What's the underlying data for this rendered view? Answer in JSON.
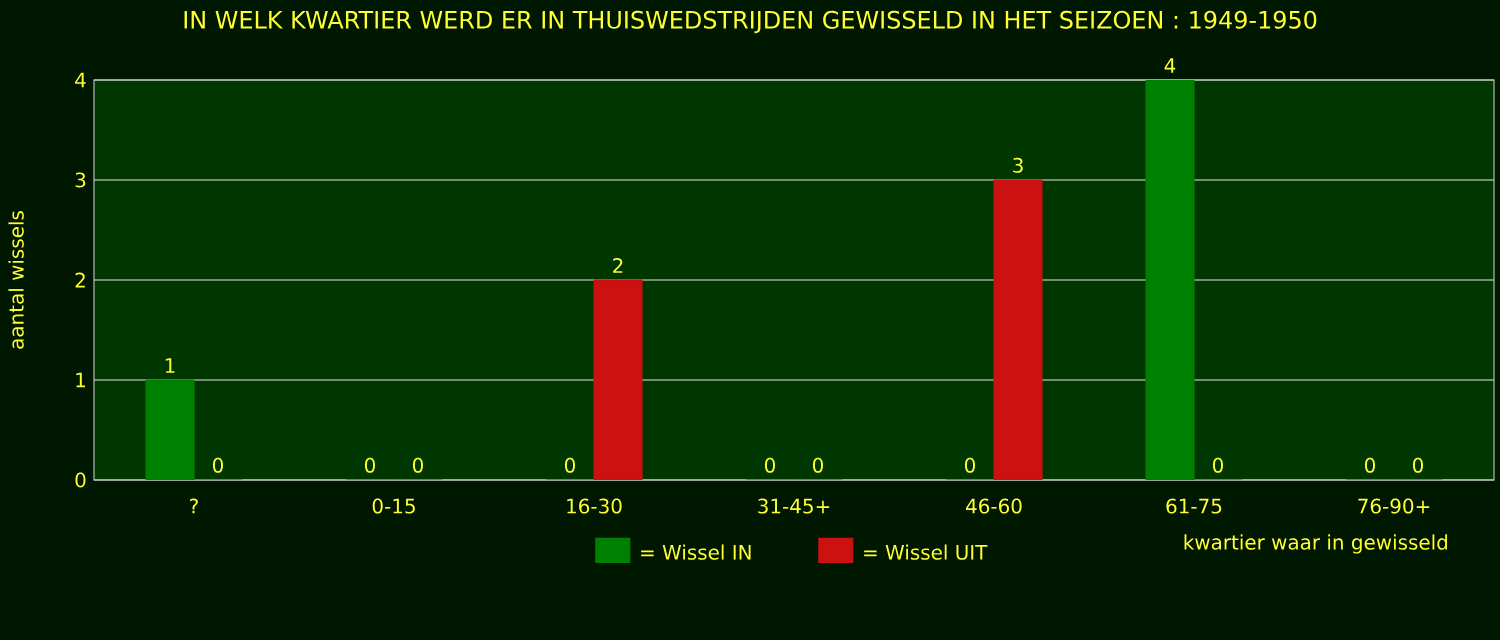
{
  "chart_data": {
    "type": "bar",
    "title": "IN WELK KWARTIER WERD ER IN THUISWEDSTRIJDEN GEWISSELD IN HET SEIZOEN : 1949-1950",
    "xlabel": "kwartier waar in gewisseld",
    "ylabel": "aantal wissels",
    "categories": [
      "?",
      "0-15",
      "16-30",
      "31-45+",
      "46-60",
      "61-75",
      "76-90+"
    ],
    "series": [
      {
        "name": "= Wissel IN",
        "color": "#008000",
        "values": [
          1,
          0,
          0,
          0,
          0,
          4,
          0
        ]
      },
      {
        "name": "= Wissel UIT",
        "color": "#cc1111",
        "values": [
          0,
          0,
          2,
          0,
          3,
          0,
          0
        ]
      }
    ],
    "ylim": [
      0,
      4
    ],
    "yticks": [
      0,
      1,
      2,
      3,
      4
    ],
    "grid": "y",
    "legend": "bottom",
    "data_labels": true
  }
}
